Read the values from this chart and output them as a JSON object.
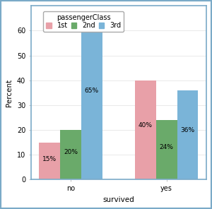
{
  "categories": [
    "no",
    "yes"
  ],
  "legend_title": "passengerClass",
  "legend_labels": [
    "1st",
    "2nd",
    "3rd"
  ],
  "bar_colors": [
    "#e8a0a8",
    "#6aaa6a",
    "#7ab4d8"
  ],
  "values": {
    "1st": [
      15,
      40
    ],
    "2nd": [
      20,
      24
    ],
    "3rd": [
      65,
      36
    ]
  },
  "labels": {
    "1st": [
      "15%",
      "40%"
    ],
    "2nd": [
      "20%",
      "24%"
    ],
    "3rd": [
      "65%",
      "36%"
    ]
  },
  "xlabel": "survived",
  "ylabel": "Percent",
  "ylim": [
    0,
    70
  ],
  "yticks": [
    0,
    10,
    20,
    30,
    40,
    50,
    60
  ],
  "background_color": "#ffffff",
  "border_color": "#7aaac8",
  "label_fontsize": 6.5,
  "axis_label_fontsize": 7.5,
  "tick_fontsize": 7,
  "legend_fontsize": 7,
  "bar_width": 0.22
}
